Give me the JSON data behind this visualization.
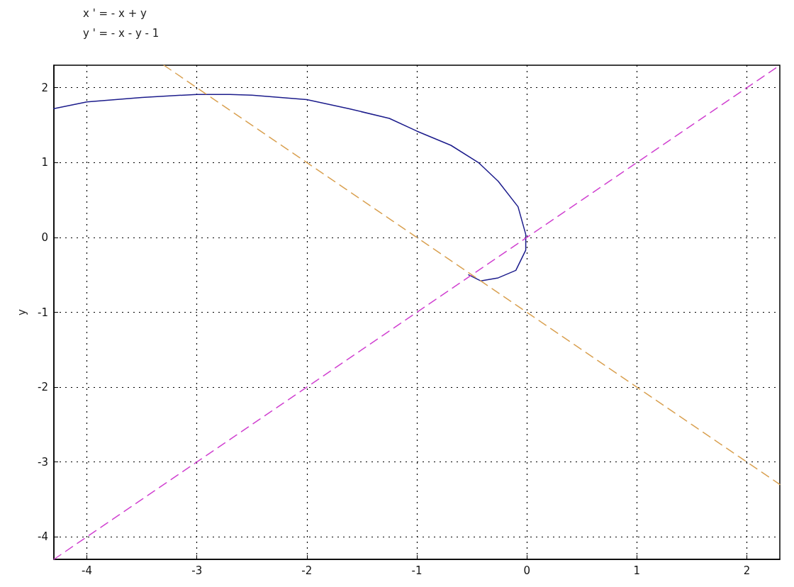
{
  "chart_data": {
    "type": "line",
    "title": "x ' = - x + y",
    "subtitle": "y ' = - x - y - 1",
    "ylabel": "y",
    "xlim": [
      -4.3,
      2.3
    ],
    "xticks": [
      -4,
      -3,
      -2,
      -1,
      0,
      1,
      2
    ],
    "ylim": [
      -4.3,
      2.3
    ],
    "yticks": [
      -4,
      -3,
      -2,
      -1,
      0,
      1,
      2
    ],
    "grid": true,
    "marker": "none",
    "series": [
      {
        "color": "#1c1c8c",
        "line_style": "solid",
        "x": [
          -4.3,
          -4,
          -3.5,
          -3,
          -2.7,
          -2.5,
          -2,
          -1.62,
          -1.25,
          -1,
          -0.69,
          -0.44,
          -0.26,
          -0.08,
          -0.01,
          -0.01,
          -0.1,
          -0.26,
          -0.42,
          -0.53
        ],
        "values": [
          1.72,
          1.81,
          1.87,
          1.91,
          1.91,
          1.9,
          1.84,
          1.72,
          1.59,
          1.42,
          1.23,
          1.0,
          0.75,
          0.41,
          0.04,
          -0.17,
          -0.44,
          -0.54,
          -0.58,
          -0.5
        ]
      },
      {
        "color": "#d9a050",
        "line_style": "dashed",
        "x": [
          -3.3,
          2.3
        ],
        "values": [
          2.3,
          -3.3
        ]
      },
      {
        "color": "#d040d0",
        "line_style": "dashed",
        "x": [
          -4.3,
          2.3
        ],
        "values": [
          -4.3,
          2.3
        ]
      }
    ]
  }
}
